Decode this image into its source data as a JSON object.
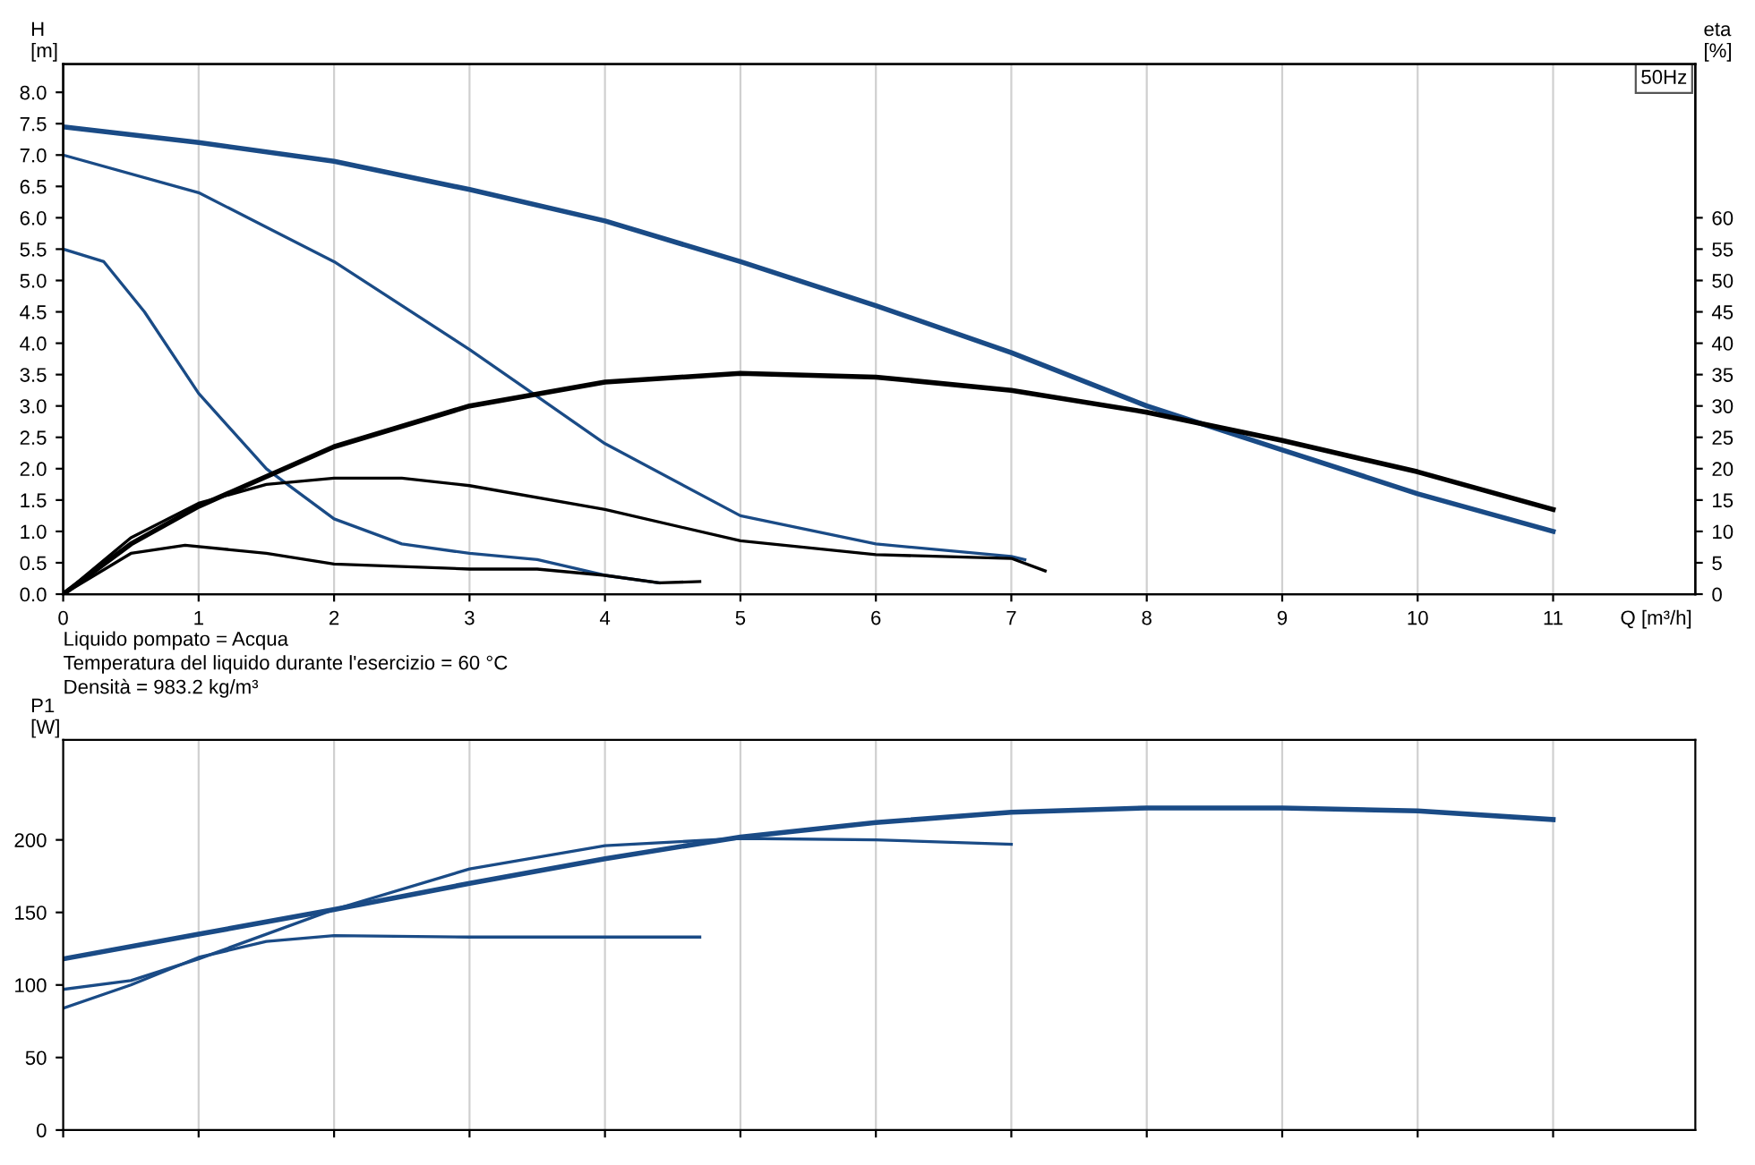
{
  "chart_data": [
    {
      "type": "line",
      "xlabel": "Q [m³/h]",
      "ylabel": "H\n[m]",
      "y2label": "eta\n[%]",
      "xlim": [
        0,
        12.05
      ],
      "xticks": [
        0,
        1,
        2,
        3,
        4,
        5,
        6,
        7,
        8,
        9,
        10,
        11
      ],
      "ylim": [
        0,
        8.45
      ],
      "yticks": [
        {
          "value": 0,
          "label": "0.0"
        },
        {
          "value": 0.5,
          "label": "0.5"
        },
        {
          "value": 1,
          "label": "1.0"
        },
        {
          "value": 1.5,
          "label": "1.5"
        },
        {
          "value": 2,
          "label": "2.0"
        },
        {
          "value": 2.5,
          "label": "2.5"
        },
        {
          "value": 3,
          "label": "3.0"
        },
        {
          "value": 3.5,
          "label": "3.5"
        },
        {
          "value": 4,
          "label": "4.0"
        },
        {
          "value": 4.5,
          "label": "4.5"
        },
        {
          "value": 5,
          "label": "5.0"
        },
        {
          "value": 5.5,
          "label": "5.5"
        },
        {
          "value": 6,
          "label": "6.0"
        },
        {
          "value": 6.5,
          "label": "6.5"
        },
        {
          "value": 7,
          "label": "7.0"
        },
        {
          "value": 7.5,
          "label": "7.5"
        },
        {
          "value": 8,
          "label": "8.0"
        }
      ],
      "y2lim": [
        0,
        84.5
      ],
      "y2ticks": [
        0,
        5,
        10,
        15,
        20,
        25,
        30,
        35,
        40,
        45,
        50,
        55,
        60
      ],
      "grid": "x",
      "annotations": [
        "50Hz",
        "Liquido pompato = Acqua",
        "Temperatura del liquido durante l'esercizio = 60 °C",
        "Densità = 983.2 kg/m³"
      ],
      "series": [
        {
          "color": "#1a4b86",
          "x": [
            0,
            1,
            2,
            3,
            4,
            5,
            6,
            7,
            8,
            9,
            10,
            11
          ],
          "values": [
            7.45,
            7.2,
            6.9,
            6.45,
            5.95,
            5.3,
            4.6,
            3.85,
            3.0,
            2.3,
            1.6,
            1.0
          ]
        },
        {
          "color": "#1a4b86",
          "x": [
            0,
            1,
            2,
            3,
            3.5,
            4,
            5,
            6,
            7,
            7.1
          ],
          "values": [
            7.0,
            6.4,
            5.3,
            3.9,
            3.15,
            2.4,
            1.25,
            0.8,
            0.6,
            0.55
          ]
        },
        {
          "color": "#1a4b86",
          "x": [
            0,
            0.3,
            0.6,
            1,
            1.5,
            2,
            2.5,
            3,
            3.5,
            4,
            4.4
          ],
          "values": [
            5.5,
            5.3,
            4.5,
            3.2,
            2.0,
            1.2,
            0.8,
            0.65,
            0.55,
            0.3,
            0.18
          ]
        },
        {
          "color": "#000000",
          "axis": "y2",
          "x": [
            0,
            0.5,
            1,
            2,
            3,
            4,
            5,
            6,
            7,
            8,
            9,
            10,
            11
          ],
          "values": [
            0,
            8,
            14,
            23.5,
            30,
            33.8,
            35.2,
            34.6,
            32.5,
            29,
            24.5,
            19.5,
            13.5
          ]
        },
        {
          "color": "#000000",
          "axis": "y2",
          "x": [
            0,
            0.5,
            1,
            1.5,
            2,
            2.5,
            3,
            4,
            5,
            6,
            7,
            7.25
          ],
          "values": [
            0,
            9,
            14.5,
            17.5,
            18.5,
            18.5,
            17.3,
            13.5,
            8.5,
            6.3,
            5.7,
            3.7
          ]
        },
        {
          "color": "#000000",
          "axis": "y2",
          "x": [
            0,
            0.5,
            0.9,
            1.5,
            2,
            3,
            3.5,
            4,
            4.4,
            4.7
          ],
          "values": [
            0,
            6.5,
            7.8,
            6.5,
            4.8,
            4,
            4,
            3,
            1.8,
            2.0
          ]
        }
      ]
    },
    {
      "type": "line",
      "ylabel": "P1\n[W]",
      "xlim": [
        0,
        12.05
      ],
      "xticks": [
        0,
        1,
        2,
        3,
        4,
        5,
        6,
        7,
        8,
        9,
        10,
        11
      ],
      "ylim": [
        0,
        269
      ],
      "yticks": [
        0,
        50,
        100,
        150,
        200
      ],
      "grid": "x",
      "tick_labels": "y",
      "series": [
        {
          "color": "#1a4b86",
          "x": [
            0,
            1,
            2,
            3,
            4,
            5,
            6,
            7,
            8,
            9,
            10,
            11
          ],
          "values": [
            118,
            135,
            152,
            170,
            187,
            202,
            212,
            219,
            222,
            222,
            220,
            214
          ]
        },
        {
          "color": "#1a4b86",
          "x": [
            0,
            0.5,
            1,
            2,
            3,
            4,
            5,
            6,
            7
          ],
          "values": [
            97,
            103,
            118,
            152,
            180,
            196,
            201,
            200,
            197
          ]
        },
        {
          "color": "#1a4b86",
          "x": [
            0,
            0.5,
            1,
            1.5,
            2,
            3,
            4,
            4.7
          ],
          "values": [
            84,
            100,
            119,
            130,
            134,
            133,
            133,
            133
          ]
        }
      ]
    }
  ]
}
